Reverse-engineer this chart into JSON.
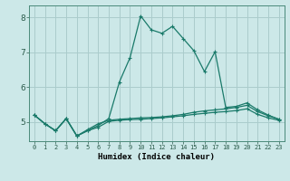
{
  "title": "",
  "xlabel": "Humidex (Indice chaleur)",
  "background_color": "#cce8e8",
  "grid_color": "#aacccc",
  "line_color": "#1a7a6a",
  "xlim": [
    -0.5,
    23.5
  ],
  "ylim": [
    4.45,
    8.35
  ],
  "yticks": [
    5,
    6,
    7,
    8
  ],
  "xticks": [
    0,
    1,
    2,
    3,
    4,
    5,
    6,
    7,
    8,
    9,
    10,
    11,
    12,
    13,
    14,
    15,
    16,
    17,
    18,
    19,
    20,
    21,
    22,
    23
  ],
  "curve1_x": [
    0,
    1,
    2,
    3,
    4,
    5,
    6,
    7,
    8,
    9,
    10,
    11,
    12,
    13,
    14,
    15,
    16,
    17,
    18,
    19,
    20,
    21,
    22,
    23
  ],
  "curve1_y": [
    5.2,
    4.95,
    4.75,
    5.1,
    4.6,
    4.75,
    4.85,
    5.02,
    5.05,
    5.07,
    5.08,
    5.1,
    5.12,
    5.15,
    5.18,
    5.22,
    5.25,
    5.28,
    5.3,
    5.33,
    5.38,
    5.22,
    5.12,
    5.05
  ],
  "curve2_x": [
    0,
    1,
    2,
    3,
    4,
    5,
    6,
    7,
    8,
    9,
    10,
    11,
    12,
    13,
    14,
    15,
    16,
    17,
    18,
    19,
    20,
    21,
    22,
    23
  ],
  "curve2_y": [
    5.2,
    4.95,
    4.75,
    5.1,
    4.6,
    4.78,
    4.95,
    5.05,
    5.08,
    5.1,
    5.12,
    5.13,
    5.15,
    5.18,
    5.22,
    5.28,
    5.32,
    5.35,
    5.38,
    5.42,
    5.48,
    5.3,
    5.18,
    5.08
  ],
  "curve3_x": [
    0,
    1,
    2,
    3,
    4,
    5,
    6,
    7,
    8,
    9,
    10,
    11,
    12,
    13,
    14,
    15,
    16,
    17,
    18,
    19,
    20,
    21,
    22,
    23
  ],
  "curve3_y": [
    5.2,
    4.95,
    4.75,
    5.1,
    4.6,
    4.75,
    4.9,
    5.1,
    6.15,
    6.85,
    8.05,
    7.65,
    7.55,
    7.75,
    7.4,
    7.05,
    6.45,
    7.02,
    5.42,
    5.45,
    5.55,
    5.35,
    5.2,
    5.08
  ],
  "marker": "+",
  "markersize": 3.5,
  "linewidth": 0.9
}
